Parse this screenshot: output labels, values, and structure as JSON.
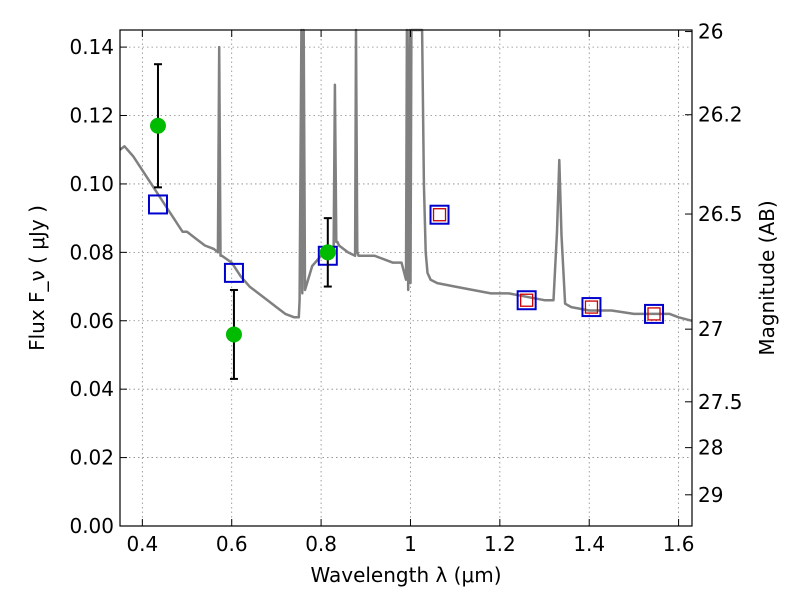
{
  "chart_data": {
    "type": "line",
    "xlabel": "Wavelength  λ (μm)",
    "ylabel": "Flux  F_ν  ( μJy )",
    "ylabel_right": "Magnitude (AB)",
    "xlim": [
      0.35,
      1.63
    ],
    "ylim": [
      0.0,
      0.145
    ],
    "grid": true,
    "x_ticks": [
      0.4,
      0.6,
      0.8,
      1.0,
      1.2,
      1.4,
      1.6
    ],
    "x_tick_labels": [
      "0.4",
      "0.6",
      "0.8",
      "1",
      "1.2",
      "1.4",
      "1.6"
    ],
    "y_ticks": [
      0.0,
      0.02,
      0.04,
      0.06,
      0.08,
      0.1,
      0.12,
      0.14
    ],
    "y_tick_labels": [
      "0.00",
      "0.02",
      "0.04",
      "0.06",
      "0.08",
      "0.10",
      "0.12",
      "0.14"
    ],
    "right_ticks": [
      {
        "label": "26",
        "mag": 26.0
      },
      {
        "label": "26.2",
        "mag": 26.2
      },
      {
        "label": "26.5",
        "mag": 26.5
      },
      {
        "label": "27",
        "mag": 27.0
      },
      {
        "label": "27.5",
        "mag": 27.5
      },
      {
        "label": "28",
        "mag": 28.0
      },
      {
        "label": "29",
        "mag": 29.0
      }
    ],
    "model_spectrum": {
      "color": "#808080",
      "x": [
        0.35,
        0.36,
        0.38,
        0.4,
        0.42,
        0.43,
        0.44,
        0.45,
        0.47,
        0.48,
        0.49,
        0.5,
        0.52,
        0.54,
        0.56,
        0.569,
        0.572,
        0.575,
        0.578,
        0.6,
        0.62,
        0.64,
        0.66,
        0.68,
        0.7,
        0.72,
        0.74,
        0.75,
        0.752,
        0.756,
        0.758,
        0.761,
        0.764,
        0.78,
        0.8,
        0.81,
        0.82,
        0.828,
        0.831,
        0.834,
        0.837,
        0.84,
        0.86,
        0.876,
        0.878,
        0.881,
        0.884,
        0.9,
        0.92,
        0.94,
        0.96,
        0.98,
        0.99,
        0.992,
        0.995,
        0.998,
        1.0,
        1.002,
        1.006,
        1.012,
        1.02,
        1.026,
        1.03,
        1.034,
        1.038,
        1.045,
        1.06,
        1.1,
        1.14,
        1.18,
        1.22,
        1.26,
        1.3,
        1.32,
        1.328,
        1.333,
        1.338,
        1.346,
        1.36,
        1.4,
        1.45,
        1.5,
        1.55,
        1.58,
        1.6,
        1.63
      ],
      "y": [
        0.11,
        0.111,
        0.108,
        0.104,
        0.1,
        0.098,
        0.096,
        0.094,
        0.09,
        0.088,
        0.086,
        0.086,
        0.084,
        0.082,
        0.081,
        0.08,
        0.14,
        0.079,
        0.079,
        0.077,
        0.073,
        0.07,
        0.068,
        0.066,
        0.064,
        0.062,
        0.061,
        0.061,
        0.066,
        0.145,
        0.068,
        0.145,
        0.069,
        0.076,
        0.079,
        0.081,
        0.08,
        0.08,
        0.129,
        0.083,
        0.083,
        0.082,
        0.08,
        0.079,
        0.145,
        0.08,
        0.079,
        0.079,
        0.079,
        0.078,
        0.077,
        0.077,
        0.072,
        0.145,
        0.069,
        0.145,
        0.071,
        0.145,
        0.145,
        0.145,
        0.145,
        0.145,
        0.1,
        0.08,
        0.074,
        0.072,
        0.071,
        0.07,
        0.069,
        0.068,
        0.068,
        0.067,
        0.066,
        0.066,
        0.086,
        0.107,
        0.085,
        0.065,
        0.064,
        0.063,
        0.063,
        0.062,
        0.062,
        0.062,
        0.061,
        0.06
      ]
    },
    "observed_points": {
      "color": "#00bb00",
      "x": [
        0.435,
        0.605,
        0.815
      ],
      "y": [
        0.117,
        0.056,
        0.08
      ],
      "err_low": [
        0.099,
        0.043,
        0.07
      ],
      "err_high": [
        0.135,
        0.069,
        0.09
      ]
    },
    "model_band_flux": {
      "color": "#0000cc",
      "x": [
        0.435,
        0.605,
        0.815,
        1.065,
        1.26,
        1.405,
        1.545
      ],
      "y": [
        0.094,
        0.074,
        0.079,
        0.091,
        0.066,
        0.064,
        0.062
      ]
    },
    "upper_band_flux": {
      "color": "#cc0000",
      "x": [
        1.065,
        1.26,
        1.405,
        1.545
      ],
      "y": [
        0.091,
        0.066,
        0.064,
        0.062
      ]
    }
  }
}
